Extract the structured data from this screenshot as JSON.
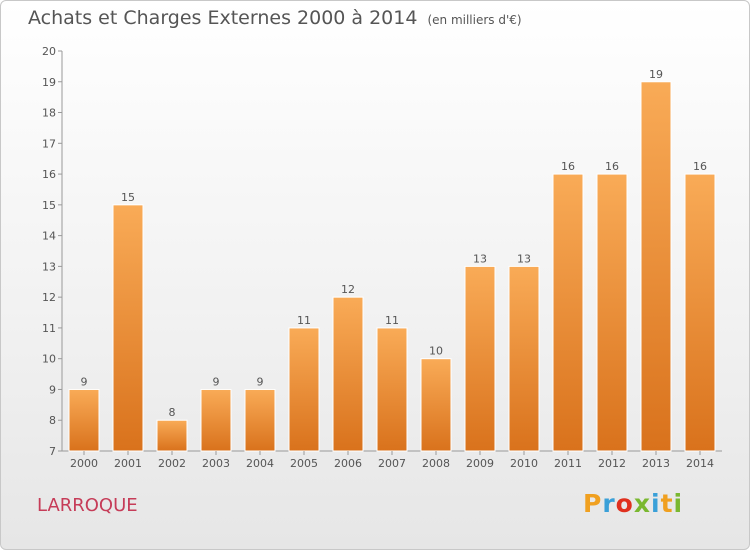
{
  "chart_data": {
    "type": "bar",
    "title": "Achats et Charges Externes 2000 à 2014",
    "subtitle": "(en milliers d'€)",
    "categories": [
      "2000",
      "2001",
      "2002",
      "2003",
      "2004",
      "2005",
      "2006",
      "2007",
      "2008",
      "2009",
      "2010",
      "2011",
      "2012",
      "2013",
      "2014"
    ],
    "values": [
      9,
      15,
      8,
      9,
      9,
      11,
      12,
      11,
      10,
      13,
      13,
      16,
      16,
      19,
      16
    ],
    "ylim": [
      7,
      20
    ],
    "yticks": [
      7,
      8,
      9,
      10,
      11,
      12,
      13,
      14,
      15,
      16,
      17,
      18,
      19,
      20
    ],
    "grid": false,
    "bar_color": "#f08a2c",
    "bar_color_light": "#f9ab57",
    "bar_color_dark": "#d9721c"
  },
  "location": "LARROQUE",
  "brand": {
    "letters": [
      "P",
      "r",
      "o",
      "x",
      "i",
      "t",
      "i"
    ],
    "colors": [
      "#f0a020",
      "#3aa0d8",
      "#e0301e",
      "#7ab830",
      "#3aa0d8",
      "#f0a020",
      "#7ab830"
    ]
  }
}
